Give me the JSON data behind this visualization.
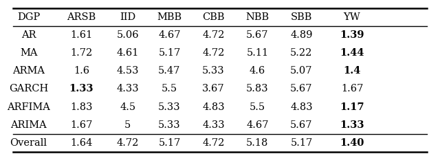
{
  "columns": [
    "DGP",
    "ARSB",
    "IID",
    "MBB",
    "CBB",
    "NBB",
    "SBB",
    "YW"
  ],
  "rows": [
    [
      "AR",
      "1.61",
      "5.06",
      "4.67",
      "4.72",
      "5.67",
      "4.89",
      "1.39"
    ],
    [
      "MA",
      "1.72",
      "4.61",
      "5.17",
      "4.72",
      "5.11",
      "5.22",
      "1.44"
    ],
    [
      "ARMA",
      "1.6",
      "4.53",
      "5.47",
      "5.33",
      "4.6",
      "5.07",
      "1.4"
    ],
    [
      "GARCH",
      "1.33",
      "4.33",
      "5.5",
      "3.67",
      "5.83",
      "5.67",
      "1.67"
    ],
    [
      "ARFIMA",
      "1.83",
      "4.5",
      "5.33",
      "4.83",
      "5.5",
      "4.83",
      "1.17"
    ],
    [
      "ARIMA",
      "1.67",
      "5",
      "5.33",
      "4.33",
      "4.67",
      "5.67",
      "1.33"
    ]
  ],
  "overall_row": [
    "Overall",
    "1.64",
    "4.72",
    "5.17",
    "4.72",
    "5.18",
    "5.17",
    "1.40"
  ],
  "bold_cells": {
    "AR": [
      7
    ],
    "MA": [
      7
    ],
    "ARMA": [
      7
    ],
    "GARCH": [
      1
    ],
    "ARFIMA": [
      7
    ],
    "ARIMA": [
      7
    ],
    "Overall": [
      7
    ]
  },
  "figsize": [
    6.4,
    2.4
  ],
  "dpi": 100,
  "background_color": "#ffffff",
  "font_family": "DejaVu Serif"
}
